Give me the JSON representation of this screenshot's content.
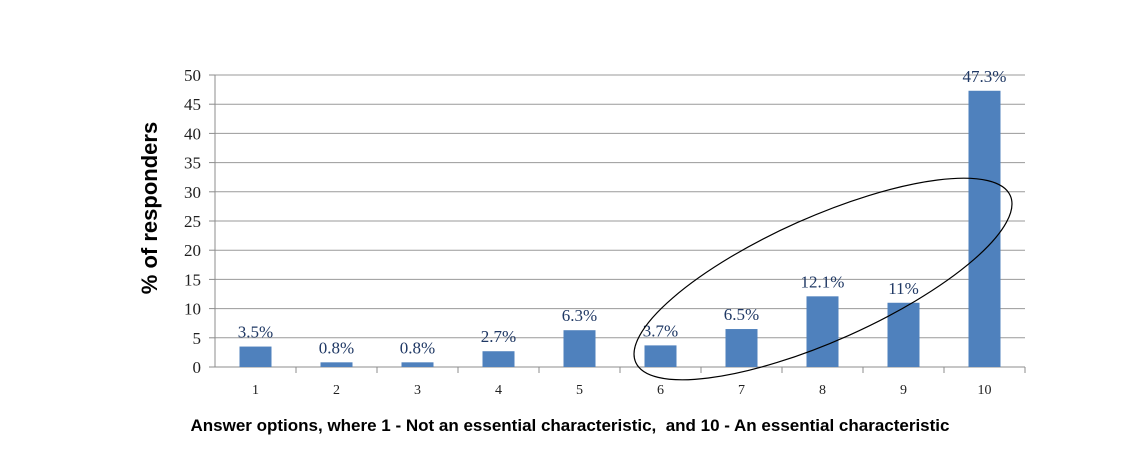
{
  "chart_data": {
    "type": "bar",
    "categories": [
      "1",
      "2",
      "3",
      "4",
      "5",
      "6",
      "7",
      "8",
      "9",
      "10"
    ],
    "values": [
      3.5,
      0.8,
      0.8,
      2.7,
      6.3,
      3.7,
      6.5,
      12.1,
      11,
      47.3
    ],
    "data_labels": [
      "3.5%",
      "0.8%",
      "0.8%",
      "2.7%",
      "6.3%",
      "3.7%",
      "6.5%",
      "12.1%",
      "11%",
      "47.3%"
    ],
    "yticks": [
      "0",
      "5",
      "10",
      "15",
      "20",
      "25",
      "30",
      "35",
      "40",
      "45",
      "50"
    ],
    "ylim": [
      0,
      50
    ],
    "ylabel": "% of responders",
    "xlabel": "Answer options, where 1 - Not an essential characteristic,  and 10 - An essential characteristic",
    "grid": true,
    "legend": "none",
    "bar_color": "#4f81bd",
    "annotation": "ellipse highlighting options 6 to 9"
  }
}
